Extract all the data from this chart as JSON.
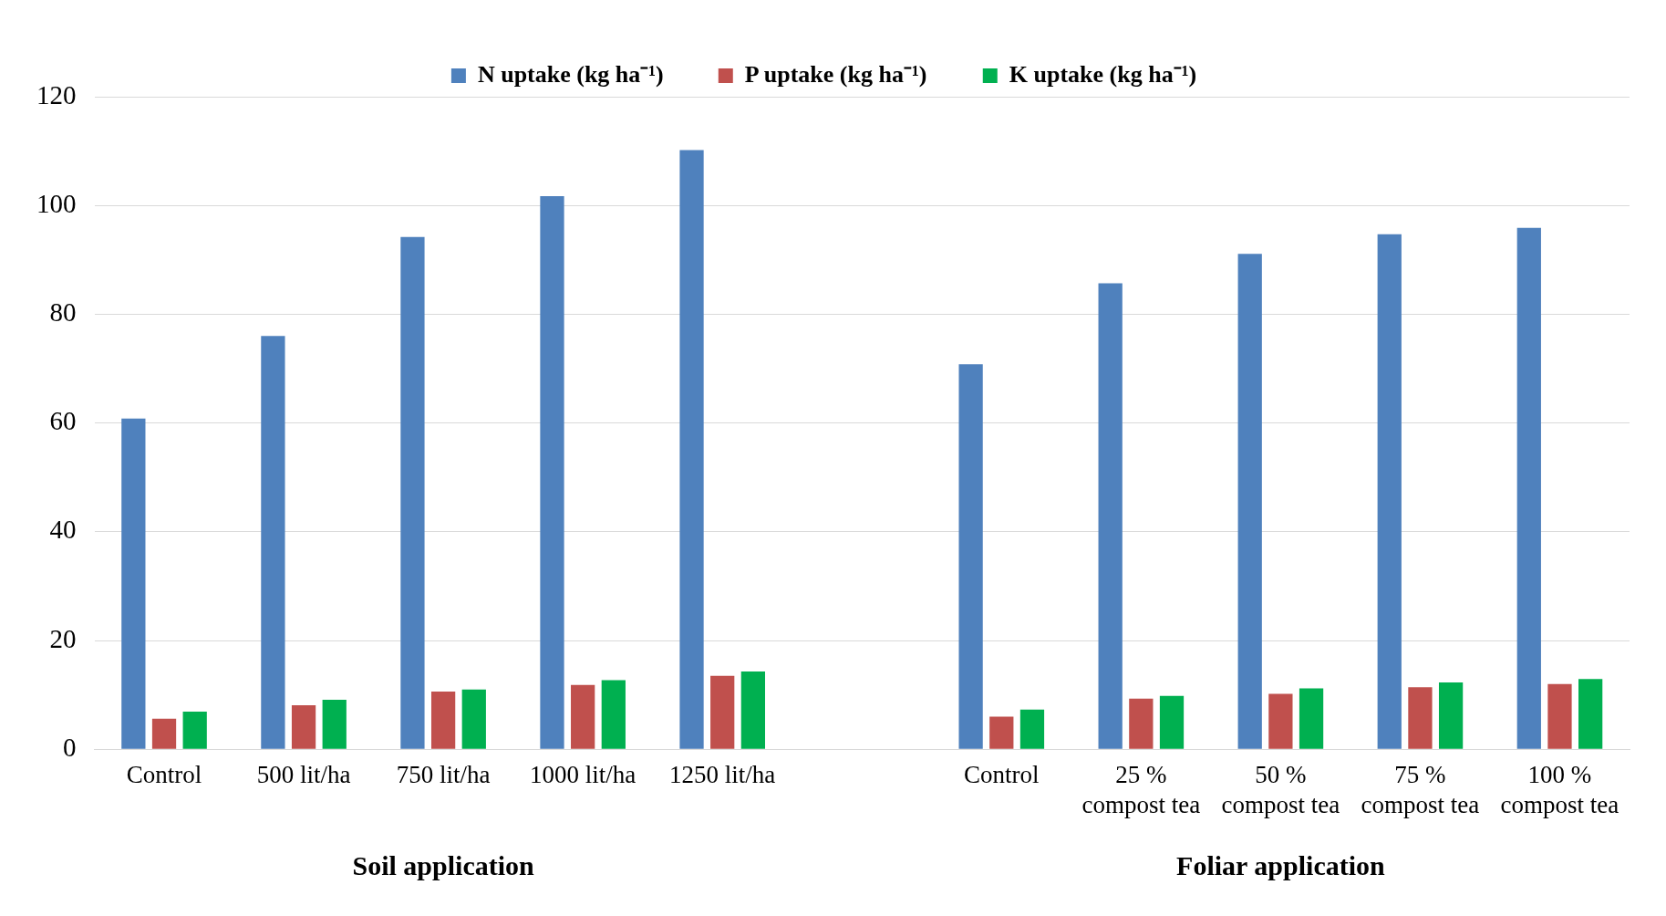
{
  "chart_data": {
    "type": "bar",
    "categories": [
      "Control",
      "500 lit/ha",
      "750 lit/ha",
      "1000 lit/ha",
      "1250 lit/ha",
      null,
      "Control",
      "25 %\ncompost tea",
      "50 %\ncompost tea",
      "75 %\ncompost tea",
      "100 %\ncompost tea"
    ],
    "series": [
      {
        "name": "N uptake (kg ha⁻¹)",
        "color": "#4f81bd",
        "values": [
          60.8,
          76,
          94.2,
          101.7,
          110.2,
          null,
          70.8,
          85.7,
          91.1,
          94.7,
          95.9
        ]
      },
      {
        "name": "P uptake (kg ha⁻¹)",
        "color": "#c0504d",
        "values": [
          5.6,
          8.1,
          10.6,
          11.8,
          13.5,
          null,
          6,
          9.3,
          10.2,
          11.4,
          12
        ]
      },
      {
        "name": "K uptake (kg ha⁻¹)",
        "color": "#00b050",
        "values": [
          6.9,
          9.1,
          11,
          12.7,
          14.3,
          null,
          7.3,
          9.8,
          11.2,
          12.3,
          12.9
        ]
      }
    ],
    "ylim": [
      0,
      120
    ],
    "yticks": [
      0,
      20,
      40,
      60,
      80,
      100,
      120
    ],
    "grid": "y",
    "legend": "top",
    "annotations": [
      "Soil application",
      "Foliar application"
    ]
  }
}
